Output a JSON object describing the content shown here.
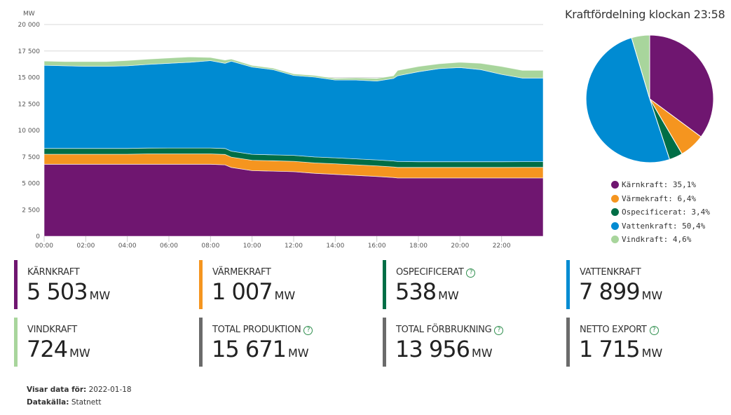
{
  "chart_data": [
    {
      "type": "area",
      "stacked": true,
      "title": "",
      "ylabel": "MW",
      "xlabel": "",
      "ylim": [
        0,
        20000
      ],
      "yticks": [
        0,
        2500,
        5000,
        7500,
        10000,
        12500,
        15000,
        17500,
        20000
      ],
      "ytick_labels": [
        "0",
        "2 500",
        "5 000",
        "7 500",
        "10 000",
        "12 500",
        "15 000",
        "17 500",
        "20 000"
      ],
      "xlim": [
        0,
        24
      ],
      "xticks": [
        0,
        2,
        4,
        6,
        8,
        10,
        12,
        14,
        16,
        18,
        20,
        22
      ],
      "xtick_labels": [
        "00:00",
        "02:00",
        "04:00",
        "06:00",
        "08:00",
        "10:00",
        "12:00",
        "14:00",
        "16:00",
        "18:00",
        "20:00",
        "22:00"
      ],
      "grid": true,
      "x": [
        0,
        1,
        2,
        3,
        4,
        5,
        6,
        7,
        8,
        8.7,
        9,
        10,
        11,
        12,
        13,
        14,
        15,
        16,
        16.8,
        17,
        18,
        19,
        20,
        21,
        22,
        23,
        24
      ],
      "series": [
        {
          "name": "Kärnkraft",
          "color": "#6f1670",
          "values": [
            6800,
            6800,
            6800,
            6800,
            6800,
            6800,
            6800,
            6800,
            6800,
            6750,
            6500,
            6200,
            6150,
            6100,
            5950,
            5850,
            5750,
            5650,
            5550,
            5500,
            5500,
            5500,
            5500,
            5500,
            5500,
            5500,
            5503
          ]
        },
        {
          "name": "Värmekraft",
          "color": "#f5951f",
          "values": [
            950,
            950,
            950,
            950,
            950,
            980,
            980,
            980,
            980,
            980,
            980,
            980,
            980,
            980,
            980,
            1000,
            1000,
            1000,
            1000,
            1000,
            1000,
            1000,
            1000,
            1000,
            1000,
            1007,
            1007
          ]
        },
        {
          "name": "Ospecificerat",
          "color": "#006e46",
          "values": [
            550,
            550,
            550,
            550,
            550,
            550,
            560,
            560,
            560,
            560,
            560,
            560,
            560,
            560,
            560,
            560,
            560,
            560,
            560,
            560,
            540,
            540,
            540,
            540,
            540,
            538,
            538
          ]
        },
        {
          "name": "Vattenkraft",
          "color": "#008bd2",
          "values": [
            7850,
            7800,
            7750,
            7750,
            7800,
            7900,
            8000,
            8100,
            8250,
            8050,
            8500,
            8250,
            8050,
            7550,
            7550,
            7350,
            7450,
            7450,
            7800,
            8100,
            8500,
            8800,
            8900,
            8700,
            8250,
            7900,
            7899
          ]
        },
        {
          "name": "Vindkraft",
          "color": "#a8d59c",
          "values": [
            400,
            400,
            450,
            450,
            500,
            500,
            500,
            500,
            300,
            300,
            200,
            150,
            150,
            150,
            150,
            150,
            200,
            250,
            250,
            500,
            500,
            450,
            500,
            600,
            750,
            724,
            724
          ]
        }
      ]
    },
    {
      "type": "pie",
      "title": "Kraftfördelning klockan 23:58",
      "categories": [
        "Kärnkraft",
        "Värmekraft",
        "Ospecificerat",
        "Vattenkraft",
        "Vindkraft"
      ],
      "values": [
        35.1,
        6.4,
        3.4,
        50.4,
        4.6
      ],
      "labels": [
        "Kärnkraft: 35,1%",
        "Värmekraft: 6,4%",
        "Ospecificerat: 3,4%",
        "Vattenkraft: 50,4%",
        "Vindkraft: 4,6%"
      ],
      "colors": [
        "#6f1670",
        "#f5951f",
        "#006e46",
        "#008bd2",
        "#a8d59c"
      ],
      "legend": "bottom"
    }
  ],
  "cards": [
    {
      "label": "KÄRNKRAFT",
      "value": "5 503",
      "unit": "MW",
      "color": "#6f1670",
      "help": false
    },
    {
      "label": "VÄRMEKRAFT",
      "value": "1 007",
      "unit": "MW",
      "color": "#f5951f",
      "help": false
    },
    {
      "label": "OSPECIFICERAT",
      "value": "538",
      "unit": "MW",
      "color": "#006e46",
      "help": true
    },
    {
      "label": "VATTENKRAFT",
      "value": "7 899",
      "unit": "MW",
      "color": "#008bd2",
      "help": false
    },
    {
      "label": "VINDKRAFT",
      "value": "724",
      "unit": "MW",
      "color": "#a8d59c",
      "help": false
    },
    {
      "label": "TOTAL PRODUKTION",
      "value": "15 671",
      "unit": "MW",
      "color": "#6b6b6b",
      "help": true
    },
    {
      "label": "TOTAL FÖRBRUKNING",
      "value": "13 956",
      "unit": "MW",
      "color": "#6b6b6b",
      "help": true
    },
    {
      "label": "NETTO EXPORT",
      "value": "1 715",
      "unit": "MW",
      "color": "#6b6b6b",
      "help": true
    }
  ],
  "help_glyph": "?",
  "footer": {
    "date_label": "Visar data för:",
    "date_value": "2022-01-18",
    "source_label": "Datakälla:",
    "source_value": "Statnett"
  }
}
